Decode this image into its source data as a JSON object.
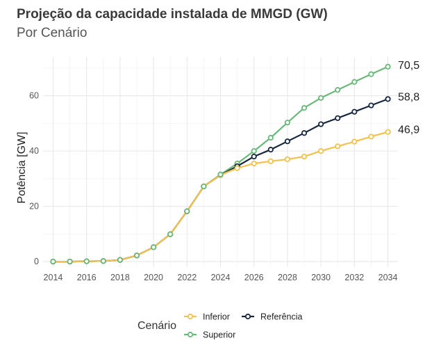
{
  "header": {
    "title": "Projeção da capacidade instalada de MMGD (GW)",
    "subtitle": "Por Cenário"
  },
  "chart_data": {
    "type": "line",
    "title": "Projeção da capacidade instalada de MMGD (GW)",
    "subtitle": "Por Cenário",
    "xlabel": "",
    "ylabel": "Potência [GW]",
    "xlim": [
      2013.4,
      2034.6
    ],
    "ylim": [
      -2,
      74
    ],
    "x_ticks": [
      2014,
      2016,
      2018,
      2020,
      2022,
      2024,
      2026,
      2028,
      2030,
      2032,
      2034
    ],
    "y_ticks": [
      0,
      20,
      40,
      60
    ],
    "grid": true,
    "legend": {
      "title": "Cenário",
      "position": "bottom",
      "items": [
        "Inferior",
        "Referência",
        "Superior"
      ]
    },
    "series": [
      {
        "name": "Inferior",
        "color": "#f2c14e",
        "x": [
          2014,
          2015,
          2016,
          2017,
          2018,
          2019,
          2020,
          2021,
          2022,
          2023,
          2024,
          2025,
          2026,
          2027,
          2028,
          2029,
          2030,
          2031,
          2032,
          2033,
          2034
        ],
        "values": [
          0,
          0,
          0.1,
          0.2,
          0.6,
          2.2,
          5.2,
          9.9,
          18.2,
          27.2,
          31.3,
          33.8,
          35.5,
          36.3,
          37.0,
          38.0,
          40.0,
          41.7,
          43.4,
          45.2,
          46.9
        ]
      },
      {
        "name": "Referência",
        "color": "#17283e",
        "x": [
          2014,
          2015,
          2016,
          2017,
          2018,
          2019,
          2020,
          2021,
          2022,
          2023,
          2024,
          2025,
          2026,
          2027,
          2028,
          2029,
          2030,
          2031,
          2032,
          2033,
          2034
        ],
        "values": [
          0,
          0,
          0.1,
          0.2,
          0.6,
          2.2,
          5.2,
          9.9,
          18.2,
          27.2,
          31.3,
          34.5,
          38.0,
          40.5,
          43.5,
          46.5,
          49.7,
          51.9,
          54.2,
          56.5,
          58.8
        ]
      },
      {
        "name": "Superior",
        "color": "#6ab87a",
        "x": [
          2014,
          2015,
          2016,
          2017,
          2018,
          2019,
          2020,
          2021,
          2022,
          2023,
          2024,
          2025,
          2026,
          2027,
          2028,
          2029,
          2030,
          2031,
          2032,
          2033,
          2034
        ],
        "values": [
          0,
          0,
          0.1,
          0.2,
          0.6,
          2.2,
          5.2,
          9.9,
          18.2,
          27.2,
          31.5,
          35.5,
          40.0,
          44.8,
          50.3,
          55.6,
          59.2,
          62.1,
          65.0,
          67.8,
          70.5
        ]
      }
    ],
    "end_labels": [
      "70,5",
      "58,8",
      "46,9"
    ]
  }
}
